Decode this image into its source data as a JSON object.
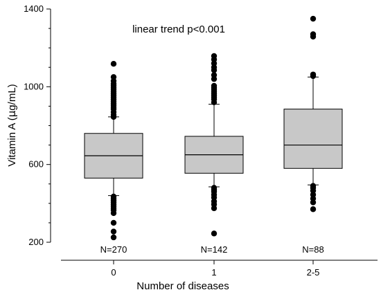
{
  "chart_data": {
    "type": "box",
    "annotation": "linear trend p<0.001",
    "xlabel": "Number of diseases",
    "ylabel_main": "Vitamin A (",
    "ylabel_mu": "μ",
    "ylabel_rest": "g/mL)",
    "ylim": [
      200,
      1400
    ],
    "yticks": [
      200,
      600,
      1000,
      1400
    ],
    "categories": [
      "0",
      "1",
      "2-5"
    ],
    "n_labels": [
      "N=270",
      "N=142",
      "N=88"
    ],
    "colors": {
      "box_fill": "#c8c8c8",
      "stroke": "#000000",
      "outlier": "#000000"
    },
    "boxes": [
      {
        "q1": 530,
        "median": 645,
        "q3": 760,
        "whisker_low": 440,
        "whisker_high": 845,
        "outliers": [
          1118,
          1050,
          1030,
          1015,
          1005,
          995,
          985,
          975,
          965,
          955,
          945,
          935,
          925,
          915,
          905,
          895,
          885,
          870,
          855,
          845,
          435,
          425,
          415,
          405,
          395,
          385,
          375,
          365,
          350,
          300,
          255,
          225
        ]
      },
      {
        "q1": 555,
        "median": 650,
        "q3": 745,
        "whisker_low": 485,
        "whisker_high": 910,
        "outliers": [
          1158,
          1140,
          1120,
          1100,
          1085,
          1060,
          1040,
          1005,
          995,
          985,
          975,
          965,
          955,
          945,
          935,
          920,
          480,
          470,
          460,
          445,
          430,
          410,
          395,
          375,
          245
        ]
      },
      {
        "q1": 580,
        "median": 700,
        "q3": 885,
        "whisker_low": 495,
        "whisker_high": 1050,
        "outliers": [
          1350,
          1270,
          1258,
          1063,
          1055,
          490,
          480,
          465,
          445,
          425,
          405,
          370
        ]
      }
    ]
  }
}
